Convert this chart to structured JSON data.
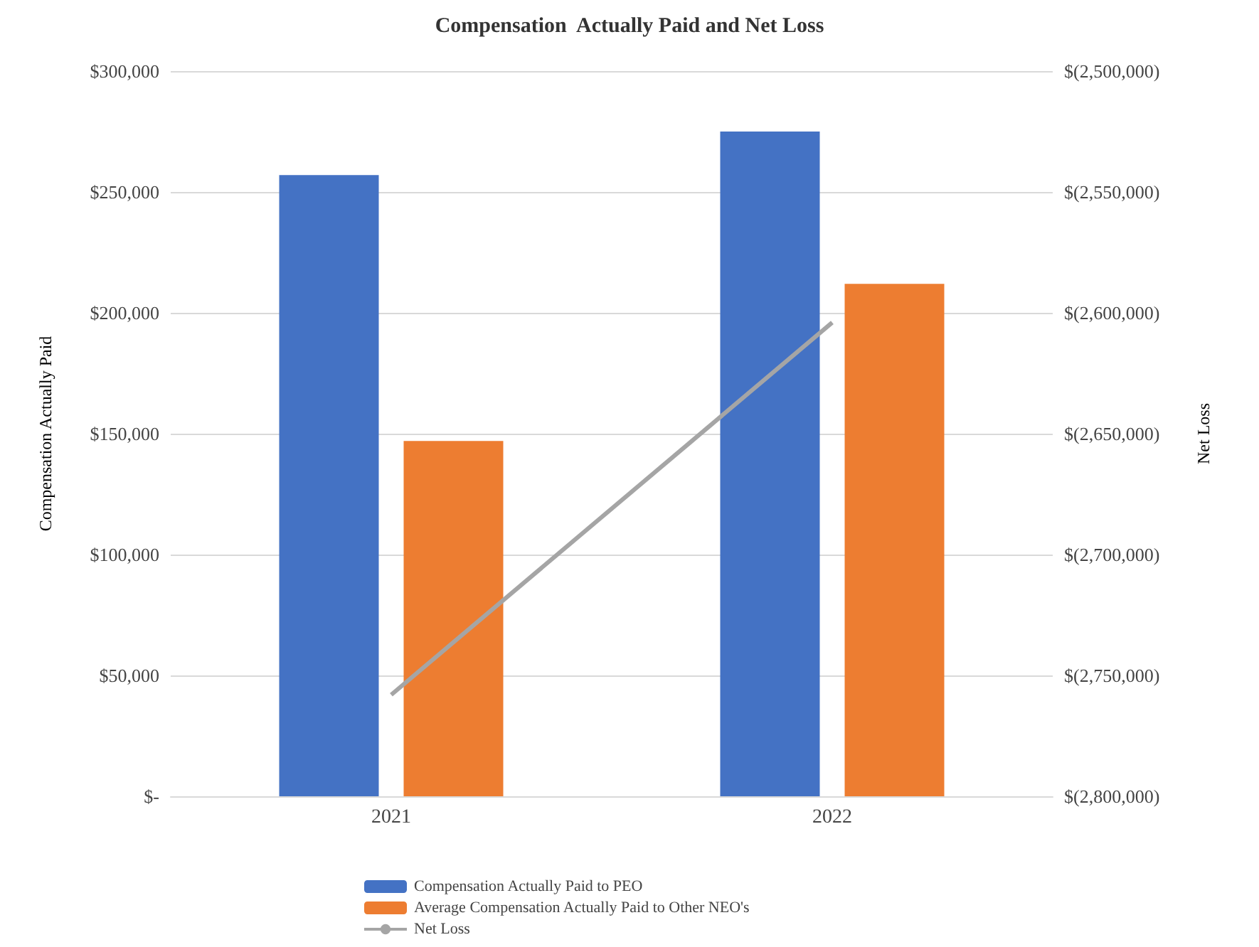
{
  "chart_data": {
    "type": "bar",
    "title": "Compensation  Actually Paid and Net Loss",
    "categories": [
      "2021",
      "2022"
    ],
    "ylabel": "Compensation Actually Paid",
    "y2label": "Net Loss",
    "series": [
      {
        "name": "Compensation Actually Paid to PEO",
        "color": "#4472c4",
        "values": [
          257000,
          275000
        ]
      },
      {
        "name": "Average Compensation Actually Paid to Other NEO's",
        "color": "#ed7d31",
        "values": [
          147000,
          212000
        ]
      },
      {
        "name": "Net Loss",
        "type": "line",
        "axis": "y2",
        "color": "#a5a5a5",
        "values": [
          -2758000,
          -2604000
        ],
        "marker": "none"
      }
    ],
    "ylim": [
      0,
      300000
    ],
    "yticks": [
      {
        "value": 0,
        "label": "$-"
      },
      {
        "value": 50000,
        "label": "$50,000"
      },
      {
        "value": 100000,
        "label": "$100,000"
      },
      {
        "value": 150000,
        "label": "$150,000"
      },
      {
        "value": 200000,
        "label": "$200,000"
      },
      {
        "value": 250000,
        "label": "$250,000"
      },
      {
        "value": 300000,
        "label": "$300,000"
      }
    ],
    "y2lim": [
      -2800000,
      -2500000
    ],
    "y2ticks": [
      {
        "value": -2800000,
        "label": "$(2,800,000)"
      },
      {
        "value": -2750000,
        "label": "$(2,750,000)"
      },
      {
        "value": -2700000,
        "label": "$(2,700,000)"
      },
      {
        "value": -2650000,
        "label": "$(2,650,000)"
      },
      {
        "value": -2600000,
        "label": "$(2,600,000)"
      },
      {
        "value": -2550000,
        "label": "$(2,550,000)"
      },
      {
        "value": -2500000,
        "label": "$(2,500,000)"
      }
    ],
    "grid": "y",
    "legend": "bottom"
  }
}
